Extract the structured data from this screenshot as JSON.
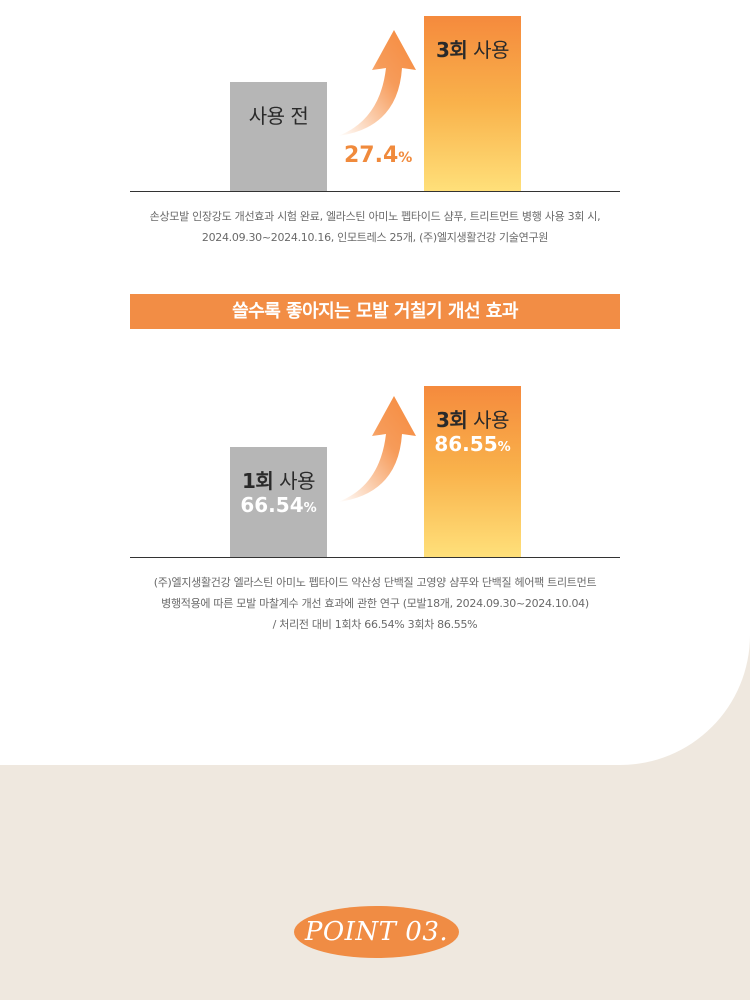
{
  "chart_data": [
    {
      "type": "bar",
      "categories": [
        "사용 전",
        "3회 사용"
      ],
      "values": [
        null,
        null
      ],
      "bar_colors": [
        "#b6b6b6",
        "gradient:#f58a3d-#ffe07a"
      ],
      "annotation": {
        "value": "27.4",
        "unit": "%"
      },
      "caption_lines": [
        "손상모발 인장강도 개선효과 시험 완료, 엘라스틴 아미노 펩타이드 샴푸, 트리트먼트 병행 사용 3회 시,",
        "2024.09.30~2024.10.16, 인모트레스 25개, (주)엘지생활건강 기술연구원"
      ]
    },
    {
      "type": "bar",
      "categories": [
        "1회 사용",
        "3회 사용"
      ],
      "values": [
        66.54,
        86.55
      ],
      "value_unit": "%",
      "bar_colors": [
        "#b6b6b6",
        "gradient:#f58a3d-#ffe07a"
      ],
      "caption_lines": [
        "(주)엘지생활건강 엘라스틴 아미노 펩타이드 약산성 단백질 고영양 샴푸와 단백질 헤어팩 트리트먼트",
        "병행적용에 따른 모발 마찰계수 개선 효과에 관한 연구 (모발18개, 2024.09.30~2024.10.04)",
        "/ 처리전 대비 1회차 66.54% 3회차 86.55%"
      ]
    }
  ],
  "chart1": {
    "bar1_label": "사용 전",
    "bar2_label_strong": "3회",
    "bar2_label_rest": " 사용",
    "pct_value": "27.4",
    "pct_unit": "%"
  },
  "banner": {
    "text": "쓸수록 좋아지는 모발 거칠기 개선 효과"
  },
  "chart2": {
    "bar1_label_strong": "1회",
    "bar1_label_rest": " 사용",
    "bar1_value": "66.54",
    "bar1_unit": "%",
    "bar2_label_strong": "3회",
    "bar2_label_rest": " 사용",
    "bar2_value": "86.55",
    "bar2_unit": "%"
  },
  "point": {
    "text": "POINT 03."
  },
  "colors": {
    "accent": "#f28d45",
    "gray_bar": "#b6b6b6",
    "background": "#efe8df"
  }
}
